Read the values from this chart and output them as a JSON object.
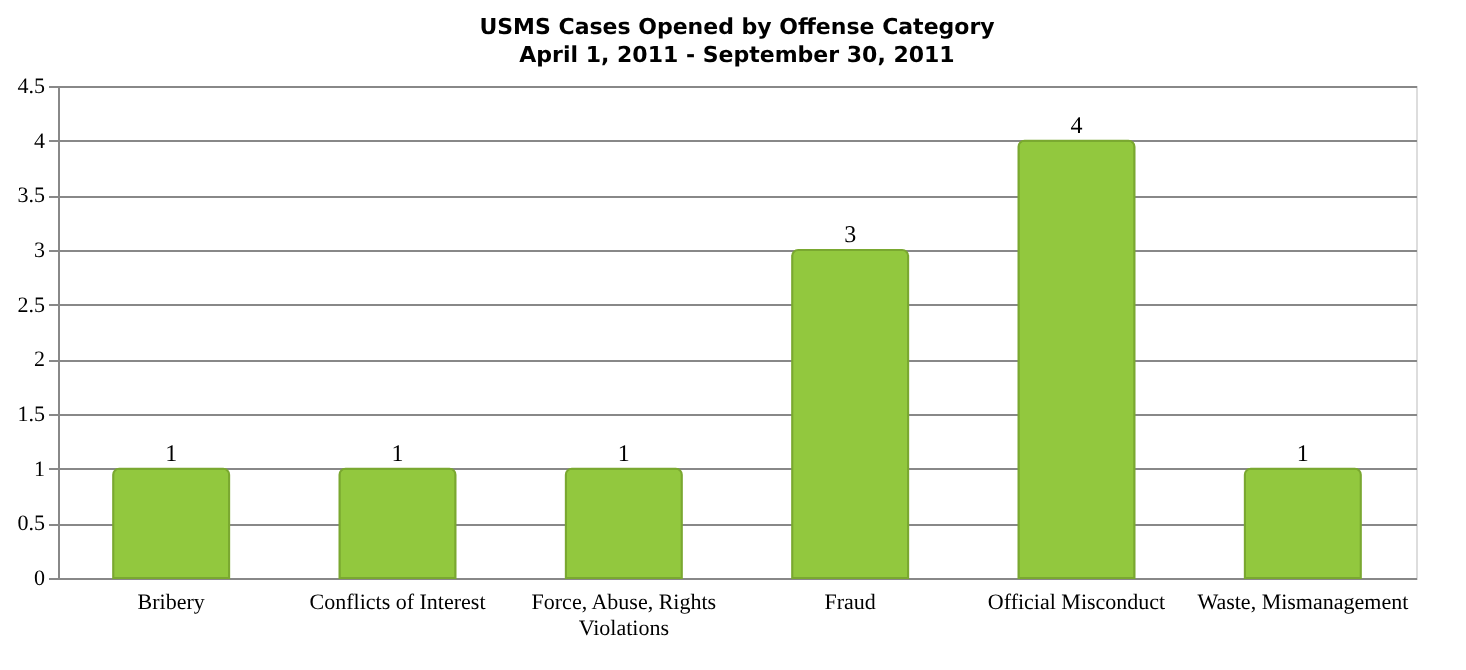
{
  "chart_data": {
    "type": "bar",
    "title": "USMS Cases Opened by Offense Category",
    "subtitle": "April 1, 2011 - September 30, 2011",
    "categories": [
      "Bribery",
      "Conflicts of Interest",
      "Force, Abuse, Rights Violations",
      "Fraud",
      "Official Misconduct",
      "Waste, Mismanagement"
    ],
    "values": [
      1,
      1,
      1,
      3,
      4,
      1
    ],
    "color": "#92c83e",
    "ylim": [
      0,
      4.5
    ],
    "yticks": [
      0,
      0.5,
      1,
      1.5,
      2,
      2.5,
      3,
      3.5,
      4,
      4.5
    ],
    "grid": "y",
    "data_labels": true
  }
}
